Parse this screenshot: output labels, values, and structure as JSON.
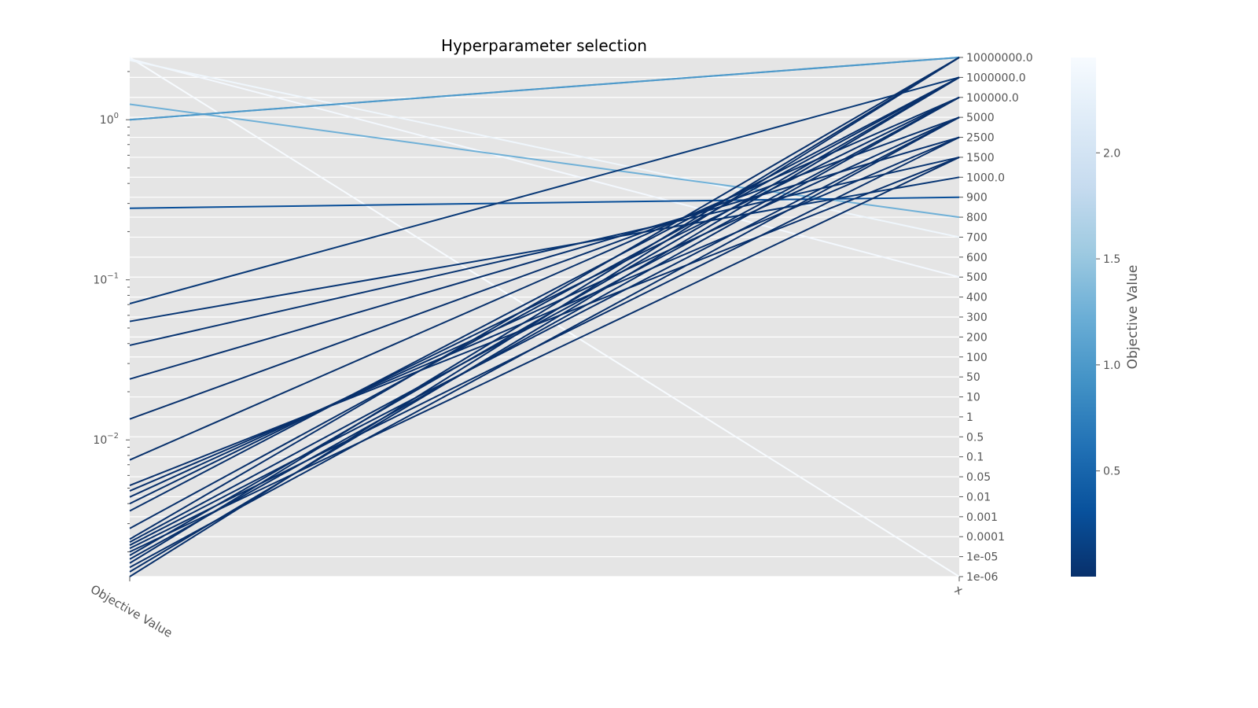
{
  "chart_data": {
    "type": "parallel_coordinates",
    "title": "Hyperparameter selection",
    "axes": [
      {
        "name": "Objective Value",
        "scale": "log",
        "ylim": [
          0.0014,
          2.45
        ],
        "tick_labels": [
          {
            "value": 1,
            "mantissa": "10",
            "exp": "0"
          },
          {
            "value": 0.1,
            "mantissa": "10",
            "exp": "−1"
          },
          {
            "value": 0.01,
            "mantissa": "10",
            "exp": "−2"
          }
        ]
      },
      {
        "name": "x",
        "scale": "categorical",
        "categories": [
          "1e-06",
          "1e-05",
          "0.0001",
          "0.001",
          "0.01",
          "0.05",
          "0.1",
          "0.5",
          "1",
          "10",
          "50",
          "100",
          "200",
          "300",
          "400",
          "500",
          "600",
          "700",
          "800",
          "900",
          "1000.0",
          "1500",
          "2500",
          "5000",
          "100000.0",
          "1000000.0",
          "10000000.0"
        ]
      }
    ],
    "colorbar": {
      "label": "Objective Value",
      "colormap": "Blues_r",
      "min": 0.0014,
      "max": 2.45,
      "ticks": [
        {
          "value": 0.5,
          "label": "0.5"
        },
        {
          "value": 1.0,
          "label": "1.0"
        },
        {
          "value": 1.5,
          "label": "1.5"
        },
        {
          "value": 2.0,
          "label": "2.0"
        }
      ]
    },
    "series": [
      {
        "objective": 2.45,
        "x": "1e-06"
      },
      {
        "objective": 2.4,
        "x": "500"
      },
      {
        "objective": 2.35,
        "x": "700"
      },
      {
        "objective": 1.25,
        "x": "800"
      },
      {
        "objective": 1.0,
        "x": "10000000.0"
      },
      {
        "objective": 1.0,
        "x": "10000000.0"
      },
      {
        "objective": 0.28,
        "x": "900"
      },
      {
        "objective": 0.071,
        "x": "1000000.0"
      },
      {
        "objective": 0.055,
        "x": "1000.0"
      },
      {
        "objective": 0.039,
        "x": "1500"
      },
      {
        "objective": 0.024,
        "x": "2500"
      },
      {
        "objective": 0.0135,
        "x": "5000"
      },
      {
        "objective": 0.0075,
        "x": "100000.0"
      },
      {
        "objective": 0.0052,
        "x": "1500"
      },
      {
        "objective": 0.0048,
        "x": "2500"
      },
      {
        "objective": 0.0044,
        "x": "5000"
      },
      {
        "objective": 0.004,
        "x": "100000.0"
      },
      {
        "objective": 0.0036,
        "x": "1000000.0"
      },
      {
        "objective": 0.0028,
        "x": "1000000.0"
      },
      {
        "objective": 0.0024,
        "x": "10000000.0"
      },
      {
        "objective": 0.0023,
        "x": "100000.0"
      },
      {
        "objective": 0.0022,
        "x": "5000"
      },
      {
        "objective": 0.0021,
        "x": "2500"
      },
      {
        "objective": 0.002,
        "x": "1500"
      },
      {
        "objective": 0.0019,
        "x": "1000000.0"
      },
      {
        "objective": 0.0018,
        "x": "100000.0"
      },
      {
        "objective": 0.0017,
        "x": "10000000.0"
      },
      {
        "objective": 0.0016,
        "x": "5000"
      },
      {
        "objective": 0.0015,
        "x": "1000000.0"
      },
      {
        "objective": 0.0014,
        "x": "10000000.0"
      }
    ]
  }
}
